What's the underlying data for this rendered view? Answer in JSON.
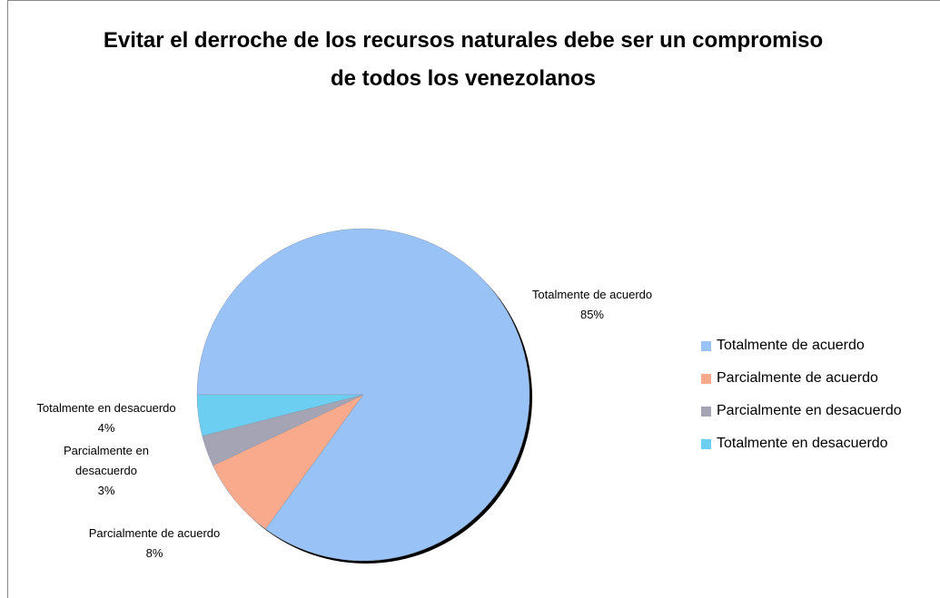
{
  "chart_data": {
    "type": "pie",
    "title": "Evitar el derroche de los recursos naturales debe ser un compromiso de todos los venezolanos",
    "categories": [
      "Totalmente de acuerdo",
      "Parcialmente de acuerdo",
      "Parcialmente en desacuerdo",
      "Totalmente en desacuerdo"
    ],
    "values": [
      85,
      8,
      3,
      4
    ],
    "value_labels": [
      "85%",
      "8%",
      "3%",
      "4%"
    ],
    "colors": [
      "#99c2f7",
      "#f9a98c",
      "#a4a4b4",
      "#6ccff2"
    ],
    "start_angle": 270,
    "legend": "right"
  }
}
